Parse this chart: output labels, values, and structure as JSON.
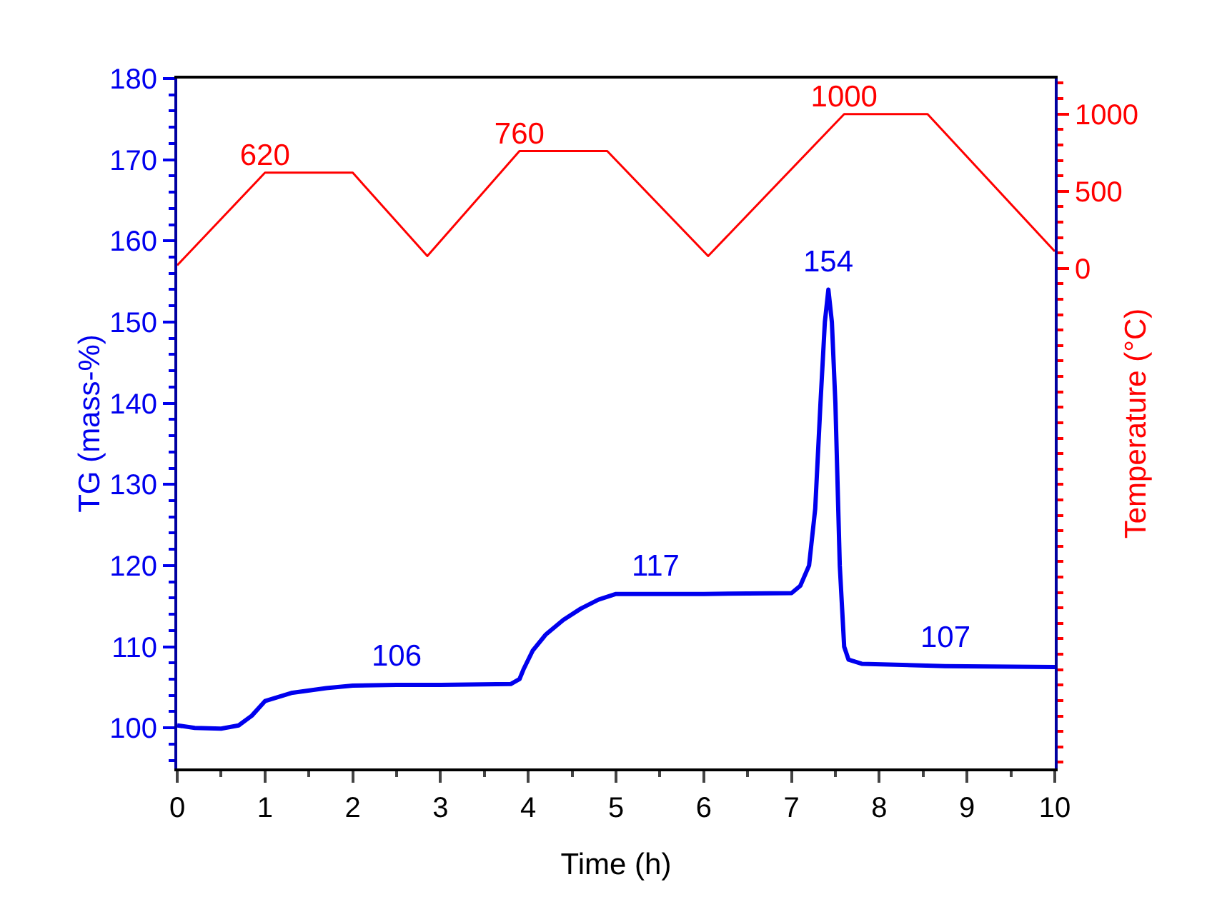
{
  "chart_data": {
    "type": "line",
    "xlabel": "Time (h)",
    "ylabel": "TG (mass-%)",
    "y2label": "Temperature (°C)",
    "xlim": [
      0,
      10
    ],
    "xticks": [
      0,
      1,
      2,
      3,
      4,
      5,
      6,
      7,
      8,
      9,
      10
    ],
    "ylim": [
      95,
      180
    ],
    "yticks": [
      100,
      110,
      120,
      130,
      140,
      150,
      160,
      170,
      180
    ],
    "y2lim": [
      -3240,
      1230
    ],
    "annotations": [
      {
        "text": "106",
        "x": 2.5,
        "y": 105.3
      },
      {
        "text": "117",
        "x": 5.45,
        "y": 116.5
      },
      {
        "text": "154",
        "x": 7.42,
        "y": 154
      },
      {
        "text": "107",
        "x": 8.75,
        "y": 107.6
      }
    ],
    "y2ticks": [
      0,
      500,
      1000
    ],
    "grid": false,
    "marker": "none",
    "line_style": "solid",
    "series": [
      {
        "color": "#0000ee",
        "x": [
          0,
          0.2,
          0.5,
          0.7,
          0.85,
          1,
          1.3,
          1.7,
          2,
          2.5,
          3,
          3.8,
          3.9,
          3.95,
          4.05,
          4.2,
          4.4,
          4.6,
          4.8,
          5,
          5.45,
          6,
          7,
          7.1,
          7.2,
          7.27,
          7.33,
          7.38,
          7.42,
          7.46,
          7.5,
          7.55,
          7.6,
          7.65,
          7.8,
          8.75,
          10
        ],
        "values": [
          100.3,
          100,
          99.9,
          100.3,
          101.5,
          103.3,
          104.3,
          104.9,
          105.2,
          105.3,
          105.3,
          105.4,
          106,
          107.3,
          109.5,
          111.5,
          113.3,
          114.7,
          115.8,
          116.5,
          116.5,
          116.5,
          116.6,
          117.5,
          120,
          127,
          140,
          150,
          154,
          150,
          140,
          120,
          110,
          108.4,
          107.9,
          107.6,
          107.5
        ]
      },
      {
        "color": "#ff0000",
        "axis": "y2",
        "x": [
          0,
          1,
          2,
          2.85,
          3.9,
          4.9,
          6.05,
          7.6,
          8.55,
          10
        ],
        "values": [
          20,
          620,
          620,
          80,
          760,
          760,
          80,
          1000,
          1000,
          110
        ],
        "value_labels": [
          null,
          "620",
          null,
          null,
          "760",
          null,
          null,
          "1000",
          null,
          null
        ]
      }
    ]
  }
}
